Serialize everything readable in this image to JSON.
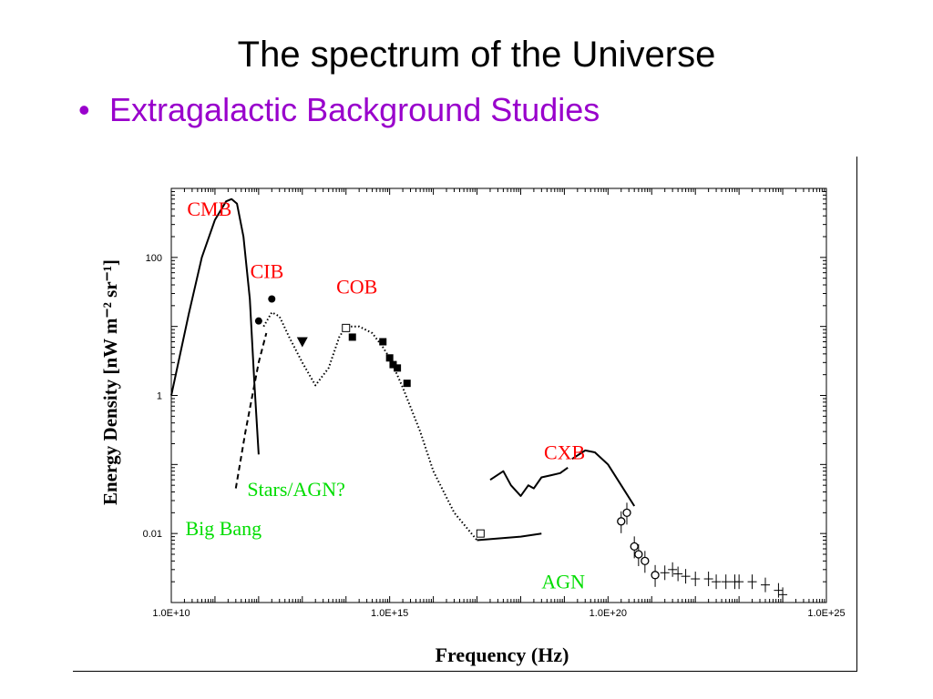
{
  "slide": {
    "title": "The spectrum of the Universe",
    "bullet": "Extragalactic Background Studies",
    "bullet_color": "#9900cc"
  },
  "chart_data": {
    "type": "line",
    "xlabel": "Frequency (Hz)",
    "ylabel": "Energy Density [nW m⁻² sr⁻¹]",
    "x_scale": "log",
    "y_scale": "log",
    "xlim": [
      10000000000.0,
      1e+25
    ],
    "ylim": [
      0.001,
      1000
    ],
    "x_ticks": [
      {
        "value": 10000000000.0,
        "label": "1.0E+10"
      },
      {
        "value": 1000000000000000.0,
        "label": "1.0E+15"
      },
      {
        "value": 1e+20,
        "label": "1.0E+20"
      },
      {
        "value": 1e+25,
        "label": "1.0E+25"
      }
    ],
    "y_ticks": [
      {
        "value": 100,
        "label": "100"
      },
      {
        "value": 1,
        "label": "1"
      },
      {
        "value": 0.01,
        "label": "0.01"
      }
    ],
    "grid": false,
    "annotations": [
      {
        "text": "CMB",
        "x": 23000000000.0,
        "y": 400,
        "color": "#ff0000"
      },
      {
        "text": "CIB",
        "x": 640000000000.0,
        "y": 50,
        "color": "#ff0000"
      },
      {
        "text": "COB",
        "x": 60000000000000.0,
        "y": 30,
        "color": "#ff0000"
      },
      {
        "text": "CXB",
        "x": 3.4e+18,
        "y": 0.12,
        "color": "#ff0000"
      },
      {
        "text": "Stars/AGN?",
        "x": 550000000000.0,
        "y": 0.035,
        "color": "#00dd00"
      },
      {
        "text": "Big Bang",
        "x": 21000000000.0,
        "y": 0.0095,
        "color": "#00dd00"
      },
      {
        "text": "AGN",
        "x": 3e+18,
        "y": 0.0016,
        "color": "#00dd00"
      }
    ],
    "series": [
      {
        "style": "solid",
        "color": "#000000",
        "x": [
          10000000000.0,
          25000000000.0,
          50000000000.0,
          100000000000.0,
          180000000000.0,
          240000000000.0,
          320000000000.0,
          450000000000.0,
          630000000000.0,
          800000000000.0,
          1000000000000.0
        ],
        "y": [
          1.0,
          15,
          100,
          350,
          650,
          700,
          600,
          200,
          25,
          1.5,
          0.14
        ]
      },
      {
        "style": "dashed",
        "color": "#000000",
        "x": [
          300000000000.0,
          500000000000.0,
          1000000000000.0,
          1500000000000.0
        ],
        "y": [
          0.045,
          0.3,
          3,
          8
        ]
      },
      {
        "style": "dotted",
        "color": "#000000",
        "x": [
          1300000000000.0,
          2000000000000.0,
          3000000000000.0,
          5000000000000.0,
          10000000000000.0,
          20000000000000.0,
          40000000000000.0,
          70000000000000.0,
          100000000000000.0,
          200000000000000.0,
          400000000000000.0,
          700000000000000.0,
          1000000000000000.0,
          2000000000000000.0,
          5000000000000000.0,
          1e+16,
          3e+16,
          1e+17
        ],
        "y": [
          10,
          16,
          14,
          7,
          3,
          1.4,
          2.5,
          7,
          10,
          10,
          8,
          5,
          3.5,
          1.3,
          0.3,
          0.08,
          0.02,
          0.008
        ]
      },
      {
        "style": "solid",
        "color": "#000000",
        "x": [
          1e+17,
          1e+18,
          3e+18
        ],
        "y": [
          0.008,
          0.009,
          0.01
        ]
      },
      {
        "style": "solid",
        "color": "#000000",
        "x": [
          2e+17,
          4e+17,
          6e+17,
          1e+18,
          1.5e+18,
          2e+18,
          3e+18,
          5e+18,
          8e+18,
          1.2e+19
        ],
        "y": [
          0.06,
          0.08,
          0.05,
          0.035,
          0.05,
          0.045,
          0.065,
          0.07,
          0.075,
          0.09
        ]
      },
      {
        "style": "solid",
        "color": "#000000",
        "x": [
          1.5e+19,
          3e+19,
          5e+19,
          1e+20,
          2e+20,
          4e+20
        ],
        "y": [
          0.12,
          0.16,
          0.15,
          0.1,
          0.05,
          0.025
        ]
      }
    ],
    "markers": [
      {
        "shape": "circle-filled",
        "x": [
          1000000000000.0,
          2000000000000.0
        ],
        "y": [
          12,
          25
        ]
      },
      {
        "shape": "triangle-down-filled",
        "x": [
          10000000000000.0
        ],
        "y": [
          6
        ]
      },
      {
        "shape": "square-open",
        "x": [
          100000000000000.0,
          1.2e+17
        ],
        "y": [
          9.5,
          0.01
        ]
      },
      {
        "shape": "square-filled",
        "x": [
          140000000000000.0,
          700000000000000.0,
          1000000000000000.0,
          1200000000000000.0,
          1500000000000000.0,
          2500000000000000.0
        ],
        "y": [
          7,
          6,
          3.5,
          2.8,
          2.5,
          1.5
        ]
      },
      {
        "shape": "circle-open-errorbar",
        "x": [
          2e+20,
          2.7e+20,
          4e+20,
          5e+20,
          7e+20,
          1.2e+21
        ],
        "y": [
          0.015,
          0.02,
          0.0065,
          0.005,
          0.004,
          0.0025
        ]
      },
      {
        "shape": "cross-errorbar",
        "x": [
          2e+21,
          3e+21,
          4e+21,
          6e+21,
          1e+22,
          2e+22,
          3e+22,
          5e+22,
          8e+22,
          1e+23,
          2e+23,
          4e+23,
          8e+23,
          1e+24
        ],
        "y": [
          0.0027,
          0.003,
          0.0026,
          0.0024,
          0.0022,
          0.0022,
          0.002,
          0.002,
          0.002,
          0.002,
          0.002,
          0.0018,
          0.0015,
          0.0013
        ]
      }
    ]
  }
}
